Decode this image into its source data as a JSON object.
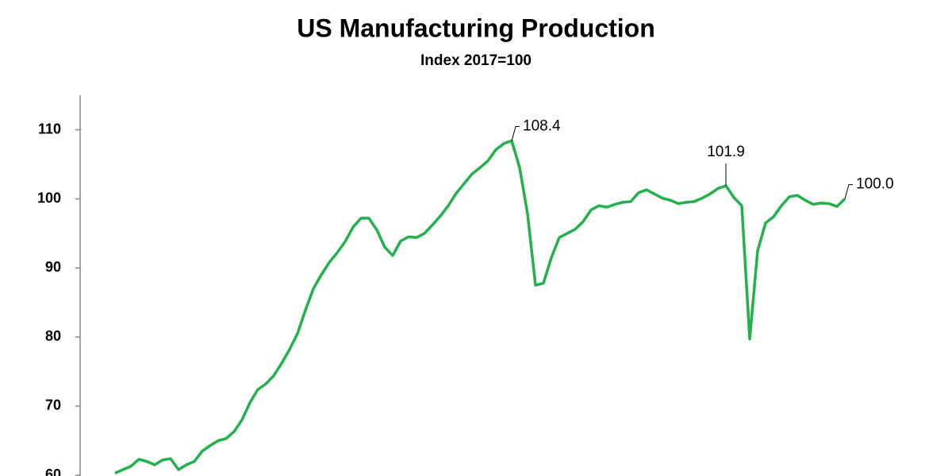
{
  "chart_data": {
    "type": "line",
    "title": "US Manufacturing Production",
    "subtitle": "Index 2017=100",
    "color": "#22b14c",
    "ylim": [
      60,
      115
    ],
    "yticks": [
      60,
      70,
      80,
      90,
      100,
      110
    ],
    "values": [
      60.3,
      60.8,
      61.3,
      62.3,
      62.0,
      61.5,
      62.2,
      62.4,
      60.8,
      61.5,
      62.0,
      63.5,
      64.3,
      65.0,
      65.3,
      66.3,
      68.0,
      70.5,
      72.4,
      73.2,
      74.4,
      76.2,
      78.2,
      80.5,
      83.9,
      87.0,
      89.0,
      90.8,
      92.2,
      93.8,
      95.9,
      97.2,
      97.2,
      95.5,
      93.0,
      91.8,
      93.9,
      94.5,
      94.4,
      95.0,
      96.2,
      97.5,
      99.0,
      100.8,
      102.2,
      103.6,
      104.5,
      105.5,
      107.1,
      108.0,
      108.4,
      104.5,
      97.8,
      87.5,
      87.8,
      91.5,
      94.4,
      95.0,
      95.6,
      96.7,
      98.4,
      99.0,
      98.8,
      99.2,
      99.5,
      99.6,
      100.9,
      101.3,
      100.7,
      100.1,
      99.8,
      99.3,
      99.5,
      99.6,
      100.1,
      100.7,
      101.5,
      101.9,
      100.2,
      99.0,
      79.7,
      92.5,
      96.5,
      97.4,
      99.0,
      100.3,
      100.5,
      99.8,
      99.2,
      99.4,
      99.3,
      98.9,
      100.0
    ],
    "annotations": [
      "108.4",
      "101.9",
      "100.0"
    ]
  }
}
